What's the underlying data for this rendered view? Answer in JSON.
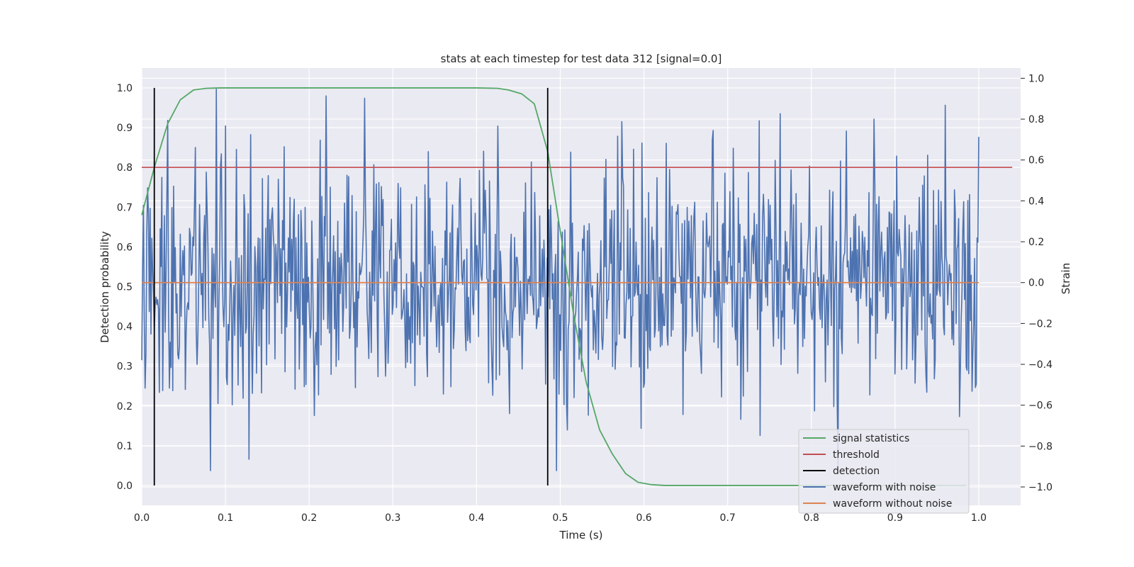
{
  "chart_data": {
    "type": "line",
    "title": "stats at each timestep for test data 312 [signal=0.0]",
    "xlabel": "Time (s)",
    "ylabel": "Detection probability",
    "y2label": "Strain",
    "xlim": [
      0.0,
      1.05
    ],
    "ylim": [
      -0.05,
      1.05
    ],
    "y2lim": [
      -1.09,
      1.05
    ],
    "xticks": [
      "0.0",
      "0.1",
      "0.2",
      "0.3",
      "0.4",
      "0.5",
      "0.6",
      "0.7",
      "0.8",
      "0.9",
      "1.0"
    ],
    "yticks": [
      "0.0",
      "0.1",
      "0.2",
      "0.3",
      "0.4",
      "0.5",
      "0.6",
      "0.7",
      "0.8",
      "0.9",
      "1.0"
    ],
    "y2ticks": [
      "−1.0",
      "−0.8",
      "−0.6",
      "−0.4",
      "−0.2",
      "0.0",
      "0.2",
      "0.4",
      "0.6",
      "0.8",
      "1.0"
    ],
    "grid": true,
    "legend_position": "lower-right",
    "colors": {
      "signal_statistics": "#55a868",
      "threshold": "#c44e52",
      "detection": "#000000",
      "waveform_with_noise": "#4c72b0",
      "waveform_without_noise": "#dd8452",
      "axes_background": "#eaeaf2",
      "grid": "#ffffff"
    },
    "series": [
      {
        "name": "signal statistics",
        "axis": "left",
        "x": [
          0.0,
          0.015,
          0.031,
          0.046,
          0.062,
          0.077,
          0.093,
          0.108,
          0.2,
          0.3,
          0.4,
          0.425,
          0.438,
          0.454,
          0.469,
          0.485,
          0.5,
          0.516,
          0.531,
          0.547,
          0.562,
          0.578,
          0.593,
          0.609,
          0.625,
          0.7,
          0.8,
          0.9,
          0.985
        ],
        "y": [
          0.68,
          0.8,
          0.91,
          0.97,
          0.995,
          0.999,
          1.0,
          1.0,
          1.0,
          1.0,
          1.0,
          0.999,
          0.995,
          0.985,
          0.96,
          0.84,
          0.64,
          0.43,
          0.26,
          0.14,
          0.08,
          0.03,
          0.008,
          0.002,
          0.0,
          0.0,
          0.0,
          0.0,
          0.0
        ]
      },
      {
        "name": "threshold",
        "axis": "left",
        "x": [
          0.0,
          1.04
        ],
        "y": [
          0.8,
          0.8
        ]
      },
      {
        "name": "detection",
        "axis": "left",
        "type": "vlines",
        "x": [
          0.015,
          0.485
        ],
        "ymin": 0.0,
        "ymax": 1.0
      },
      {
        "name": "waveform with noise",
        "axis": "right",
        "x_start": 0.0,
        "x_end": 1.0,
        "samples": 1000,
        "y_range": [
          -0.92,
          1.0
        ],
        "y_std": 0.3
      },
      {
        "name": "waveform without noise",
        "axis": "right",
        "x": [
          0.0,
          1.0
        ],
        "y": [
          0.0,
          0.0
        ]
      }
    ]
  }
}
